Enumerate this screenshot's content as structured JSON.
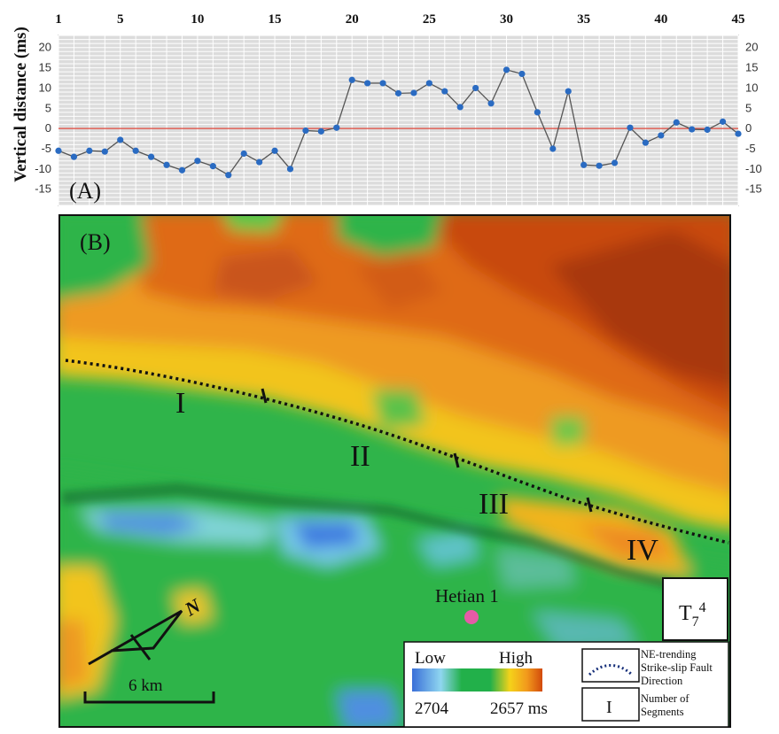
{
  "chart_data": {
    "type": "line",
    "panel_label": "(A)",
    "ylabel": "Vertical distance (ms)",
    "x_ticks": [
      1,
      5,
      10,
      15,
      20,
      25,
      30,
      35,
      40,
      45
    ],
    "y_ticks": [
      -15,
      -10,
      -5,
      0,
      5,
      10,
      15,
      20
    ],
    "xlim": [
      1,
      45
    ],
    "ylim": [
      -19,
      23
    ],
    "grid": true,
    "zero_line": true,
    "x": [
      1,
      2,
      3,
      4,
      5,
      6,
      7,
      8,
      9,
      10,
      11,
      12,
      13,
      14,
      15,
      16,
      17,
      18,
      19,
      20,
      21,
      22,
      23,
      24,
      25,
      26,
      27,
      28,
      29,
      30,
      31,
      32,
      33,
      34,
      35,
      36,
      37,
      38,
      39,
      40,
      41,
      42,
      43,
      44,
      45
    ],
    "values": [
      -5.5,
      -7,
      -5.5,
      -5.7,
      -2.8,
      -5.5,
      -7,
      -9,
      -10.3,
      -8,
      -9.3,
      -11.5,
      -6.2,
      -8.3,
      -5.5,
      -10,
      -0.5,
      -0.7,
      0.2,
      12,
      11.2,
      11.2,
      8.7,
      8.8,
      11.2,
      9.2,
      5.3,
      10,
      6.2,
      14.5,
      13.5,
      4,
      -5,
      9.2,
      -9,
      -9.2,
      -8.5,
      0.2,
      -3.5,
      -1.7,
      1.5,
      -0.2,
      -0.3,
      1.7,
      -1.3
    ]
  },
  "map": {
    "panel_label": "(B)",
    "segments": [
      "I",
      "II",
      "III",
      "IV"
    ],
    "well_label": "Hetian 1",
    "north_label": "N",
    "scale_label": "6 km",
    "horizon_label": "T",
    "horizon_sub": "7",
    "horizon_sup": "4",
    "legend": {
      "low_label": "Low",
      "high_label": "High",
      "low_value": "2704",
      "high_value": "2657 ms",
      "fault_label_line1": "NE-trending",
      "fault_label_line2": "Strike-slip Fault",
      "fault_label_line3": "Direction",
      "segment_symbol": "I",
      "segment_label_line1": "Number of",
      "segment_label_line2": "Segments"
    },
    "colors": {
      "low": "#3a6fd8",
      "mid": "#22b04a",
      "high_yellow": "#f4d21a",
      "high": "#d24a0c",
      "well": "#e55ba7"
    }
  }
}
